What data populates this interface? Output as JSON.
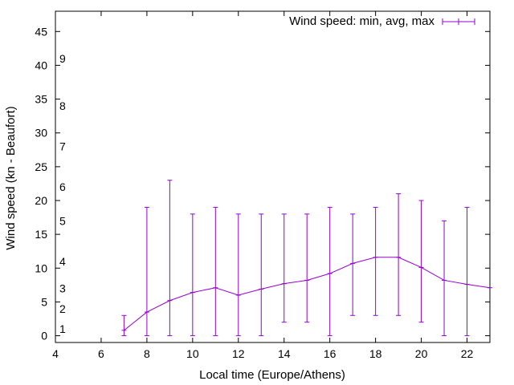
{
  "chart_data": {
    "type": "line",
    "title": "",
    "xlabel": "Local time (Europe/Athens)",
    "ylabel": "Wind speed (kn - Beaufort)",
    "xlim": [
      4,
      23
    ],
    "ylim": [
      -1,
      48
    ],
    "x_ticks": [
      "4",
      "6",
      "8",
      "10",
      "12",
      "14",
      "16",
      "18",
      "20",
      "22"
    ],
    "y_ticks": [
      "0",
      "5",
      "10",
      "15",
      "20",
      "25",
      "30",
      "35",
      "40",
      "45"
    ],
    "beaufort_labels": [
      {
        "label": "1",
        "value": 1
      },
      {
        "label": "2",
        "value": 4
      },
      {
        "label": "3",
        "value": 7
      },
      {
        "label": "4",
        "value": 11
      },
      {
        "label": "5",
        "value": 17
      },
      {
        "label": "6",
        "value": 22
      },
      {
        "label": "7",
        "value": 28
      },
      {
        "label": "8",
        "value": 34
      },
      {
        "label": "9",
        "value": 41
      }
    ],
    "series": [
      {
        "name": "Wind speed: min, avg, max",
        "color": "#9400d3",
        "x": [
          7,
          8,
          9,
          10,
          11,
          12,
          13,
          14,
          15,
          16,
          17,
          18,
          19,
          20,
          21,
          22,
          23
        ],
        "min": [
          0,
          0,
          0,
          0,
          0,
          0,
          0,
          2,
          2,
          0,
          3,
          3,
          3,
          2,
          0,
          0,
          null
        ],
        "avg": [
          0.8,
          3.5,
          5.2,
          6.4,
          7.1,
          6.0,
          6.9,
          7.7,
          8.2,
          9.2,
          10.7,
          11.6,
          11.6,
          10.1,
          8.2,
          7.6,
          7.1
        ],
        "max": [
          3,
          19,
          23,
          18,
          19,
          18,
          18,
          18,
          18,
          19,
          18,
          19,
          21,
          20,
          17,
          19,
          null
        ]
      }
    ],
    "legend": {
      "position": "top-right"
    }
  }
}
